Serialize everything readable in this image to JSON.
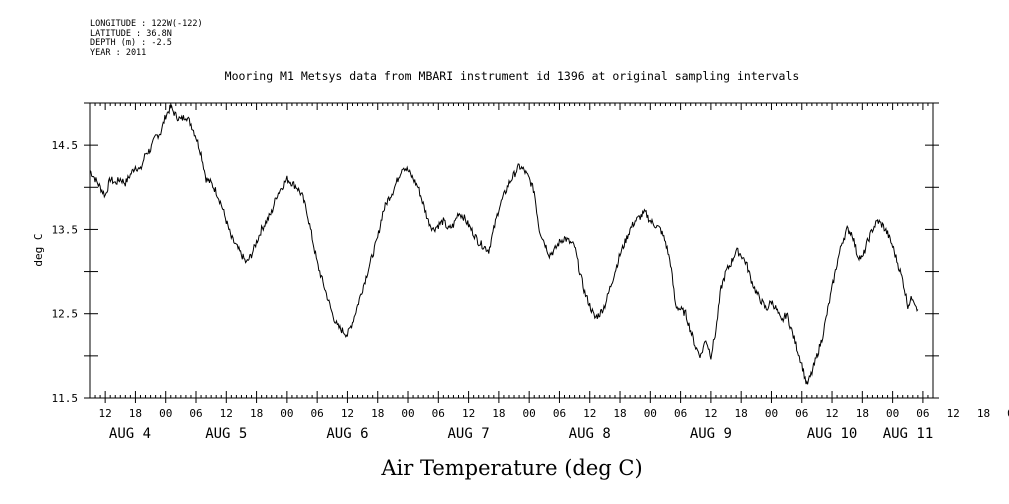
{
  "meta": {
    "longitude": "LONGITUDE : 122W(-122)",
    "latitude": "LATITUDE : 36.8N",
    "depth": "DEPTH (m) : -2.5",
    "year": "YEAR : 2011"
  },
  "chart_data": {
    "type": "line",
    "title": "Mooring M1 Metsys data from MBARI instrument id 1396 at original sampling intervals",
    "xlabel": "Air Temperature (deg C)",
    "ylabel": "deg C",
    "ylim": [
      11.5,
      15.0
    ],
    "xlim_hours": [
      -15,
      152
    ],
    "yticks": [
      11.5,
      12.5,
      13.5,
      14.5
    ],
    "ytick_labels": [
      "11.5",
      "12.5",
      "13.5",
      "14.5"
    ],
    "hour_ticks": [
      12,
      18,
      0,
      6,
      12,
      18,
      0,
      6,
      12,
      18,
      0,
      6,
      12,
      18,
      0,
      6,
      12,
      18,
      0,
      6,
      12,
      18,
      0,
      6,
      12,
      18,
      0,
      6,
      12,
      18,
      0,
      6
    ],
    "days": [
      "AUG  4",
      "AUG  5",
      "AUG  6",
      "AUG  7",
      "AUG  8",
      "AUG  9",
      "AUG 10",
      "AUG 11"
    ],
    "series": [
      {
        "points": [
          [
            -15,
            14.2
          ],
          [
            -14,
            14.1
          ],
          [
            -13,
            14.0
          ],
          [
            -12,
            13.9
          ],
          [
            -11,
            14.1
          ],
          [
            -10,
            14.05
          ],
          [
            -9,
            14.1
          ],
          [
            -8,
            14.05
          ],
          [
            -7,
            14.15
          ],
          [
            -6,
            14.25
          ],
          [
            -5,
            14.2
          ],
          [
            -4,
            14.4
          ],
          [
            -3,
            14.45
          ],
          [
            -2,
            14.6
          ],
          [
            -1,
            14.65
          ],
          [
            0,
            14.85
          ],
          [
            1,
            14.95
          ],
          [
            2,
            14.85
          ],
          [
            3,
            14.8
          ],
          [
            4,
            14.85
          ],
          [
            5,
            14.75
          ],
          [
            6,
            14.6
          ],
          [
            7,
            14.4
          ],
          [
            8,
            14.1
          ],
          [
            9,
            14.05
          ],
          [
            10,
            13.95
          ],
          [
            11,
            13.8
          ],
          [
            12,
            13.6
          ],
          [
            13,
            13.4
          ],
          [
            14,
            13.3
          ],
          [
            15,
            13.2
          ],
          [
            16,
            13.1
          ],
          [
            17,
            13.2
          ],
          [
            18,
            13.35
          ],
          [
            19,
            13.5
          ],
          [
            20,
            13.6
          ],
          [
            21,
            13.7
          ],
          [
            22,
            13.9
          ],
          [
            23,
            14.0
          ],
          [
            24,
            14.1
          ],
          [
            25,
            14.05
          ],
          [
            26,
            14.0
          ],
          [
            27,
            13.9
          ],
          [
            28,
            13.7
          ],
          [
            29,
            13.4
          ],
          [
            30,
            13.1
          ],
          [
            31,
            12.9
          ],
          [
            32,
            12.7
          ],
          [
            33,
            12.5
          ],
          [
            34,
            12.35
          ],
          [
            35,
            12.3
          ],
          [
            36,
            12.25
          ],
          [
            37,
            12.4
          ],
          [
            38,
            12.6
          ],
          [
            39,
            12.8
          ],
          [
            40,
            13.0
          ],
          [
            41,
            13.2
          ],
          [
            42,
            13.4
          ],
          [
            43,
            13.7
          ],
          [
            44,
            13.85
          ],
          [
            45,
            13.95
          ],
          [
            46,
            14.1
          ],
          [
            47,
            14.25
          ],
          [
            48,
            14.2
          ],
          [
            49,
            14.1
          ],
          [
            50,
            14.0
          ],
          [
            51,
            13.8
          ],
          [
            52,
            13.6
          ],
          [
            53,
            13.5
          ],
          [
            54,
            13.55
          ],
          [
            55,
            13.6
          ],
          [
            56,
            13.5
          ],
          [
            57,
            13.55
          ],
          [
            58,
            13.7
          ],
          [
            59,
            13.65
          ],
          [
            60,
            13.55
          ],
          [
            61,
            13.45
          ],
          [
            62,
            13.35
          ],
          [
            63,
            13.3
          ],
          [
            64,
            13.25
          ],
          [
            65,
            13.5
          ],
          [
            66,
            13.75
          ],
          [
            67,
            13.9
          ],
          [
            68,
            14.05
          ],
          [
            69,
            14.15
          ],
          [
            70,
            14.25
          ],
          [
            71,
            14.2
          ],
          [
            72,
            14.1
          ],
          [
            73,
            13.95
          ],
          [
            74,
            13.5
          ],
          [
            75,
            13.35
          ],
          [
            76,
            13.2
          ],
          [
            77,
            13.25
          ],
          [
            78,
            13.35
          ],
          [
            79,
            13.4
          ],
          [
            80,
            13.35
          ],
          [
            81,
            13.3
          ],
          [
            82,
            13.0
          ],
          [
            83,
            12.75
          ],
          [
            84,
            12.6
          ],
          [
            85,
            12.45
          ],
          [
            86,
            12.5
          ],
          [
            87,
            12.6
          ],
          [
            88,
            12.8
          ],
          [
            89,
            13.0
          ],
          [
            90,
            13.2
          ],
          [
            91,
            13.35
          ],
          [
            92,
            13.5
          ],
          [
            93,
            13.6
          ],
          [
            94,
            13.65
          ],
          [
            95,
            13.7
          ],
          [
            96,
            13.6
          ],
          [
            97,
            13.55
          ],
          [
            98,
            13.5
          ],
          [
            99,
            13.35
          ],
          [
            100,
            13.1
          ],
          [
            101,
            12.6
          ],
          [
            102,
            12.55
          ],
          [
            103,
            12.5
          ],
          [
            104,
            12.3
          ],
          [
            105,
            12.1
          ],
          [
            106,
            12.0
          ],
          [
            107,
            12.2
          ],
          [
            108,
            12.0
          ],
          [
            109,
            12.3
          ],
          [
            110,
            12.8
          ],
          [
            111,
            13.0
          ],
          [
            112,
            13.1
          ],
          [
            113,
            13.25
          ],
          [
            114,
            13.2
          ],
          [
            115,
            13.1
          ],
          [
            116,
            12.9
          ],
          [
            117,
            12.75
          ],
          [
            118,
            12.65
          ],
          [
            119,
            12.55
          ],
          [
            120,
            12.65
          ],
          [
            121,
            12.55
          ],
          [
            122,
            12.4
          ],
          [
            123,
            12.5
          ],
          [
            124,
            12.3
          ],
          [
            125,
            12.1
          ],
          [
            126,
            11.9
          ],
          [
            127,
            11.65
          ],
          [
            128,
            11.8
          ],
          [
            129,
            12.0
          ],
          [
            130,
            12.2
          ],
          [
            131,
            12.5
          ],
          [
            132,
            12.8
          ],
          [
            133,
            13.1
          ],
          [
            134,
            13.35
          ],
          [
            135,
            13.5
          ],
          [
            136,
            13.45
          ],
          [
            137,
            13.2
          ],
          [
            138,
            13.15
          ],
          [
            139,
            13.35
          ],
          [
            140,
            13.5
          ],
          [
            141,
            13.6
          ],
          [
            142,
            13.55
          ],
          [
            143,
            13.45
          ],
          [
            144,
            13.3
          ],
          [
            145,
            13.1
          ],
          [
            146,
            12.9
          ],
          [
            147,
            12.6
          ],
          [
            148,
            12.7
          ],
          [
            149,
            12.55
          ]
        ]
      }
    ],
    "grid": false,
    "line_color": "#000000"
  }
}
